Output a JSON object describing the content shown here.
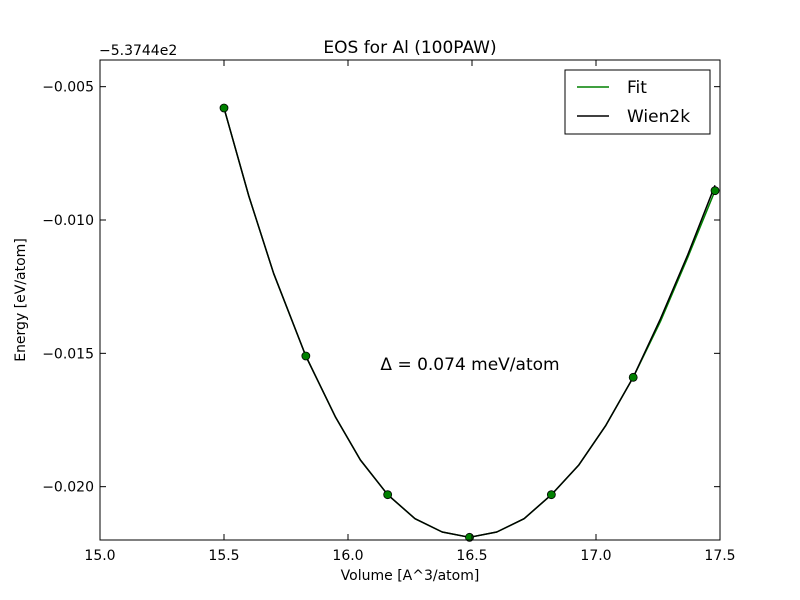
{
  "chart_data": {
    "type": "line",
    "title": "EOS for Al (100PAW)",
    "xlabel": "Volume [A^3/atom]",
    "ylabel": "Energy [eV/atom]",
    "offset_text": "−5.3744e2",
    "xlim": [
      15.0,
      17.5
    ],
    "ylim": [
      -0.022,
      -0.004
    ],
    "xticks": [
      15.0,
      15.5,
      16.0,
      16.5,
      17.0,
      17.5
    ],
    "xtick_labels": [
      "15.0",
      "15.5",
      "16.0",
      "16.5",
      "17.0",
      "17.5"
    ],
    "yticks": [
      -0.005,
      -0.01,
      -0.015,
      -0.02
    ],
    "ytick_labels": [
      "−0.005",
      "−0.010",
      "−0.015",
      "−0.020"
    ],
    "annotation": "Δ = 0.074 meV/atom",
    "grid": false,
    "legend": {
      "position": "top-right"
    },
    "points": {
      "x": [
        15.5,
        15.83,
        16.16,
        16.49,
        16.82,
        17.15,
        17.48
      ],
      "y": [
        -0.0058,
        -0.0151,
        -0.0203,
        -0.0219,
        -0.0203,
        -0.0159,
        -0.0089
      ],
      "color": "#008000"
    },
    "series": [
      {
        "name": "Fit",
        "color": "#008000",
        "x": [
          15.5,
          15.6,
          15.7,
          15.83,
          15.95,
          16.05,
          16.16,
          16.27,
          16.38,
          16.49,
          16.6,
          16.71,
          16.82,
          16.93,
          17.04,
          17.15,
          17.26,
          17.37,
          17.48
        ],
        "y": [
          -0.0058,
          -0.0091,
          -0.012,
          -0.0151,
          -0.0174,
          -0.019,
          -0.0203,
          -0.0212,
          -0.0217,
          -0.0219,
          -0.0217,
          -0.0212,
          -0.0203,
          -0.0192,
          -0.0177,
          -0.0159,
          -0.0138,
          -0.0114,
          -0.0089
        ]
      },
      {
        "name": "Wien2k",
        "color": "#000000",
        "x": [
          15.5,
          15.6,
          15.7,
          15.83,
          15.95,
          16.05,
          16.16,
          16.27,
          16.38,
          16.49,
          16.6,
          16.71,
          16.82,
          16.93,
          17.04,
          17.15,
          17.26,
          17.37,
          17.48
        ],
        "y": [
          -0.0058,
          -0.0091,
          -0.012,
          -0.0151,
          -0.0174,
          -0.019,
          -0.0203,
          -0.0212,
          -0.0217,
          -0.0219,
          -0.0217,
          -0.0212,
          -0.0203,
          -0.0192,
          -0.0177,
          -0.0159,
          -0.0137,
          -0.0113,
          -0.0087
        ]
      }
    ]
  }
}
